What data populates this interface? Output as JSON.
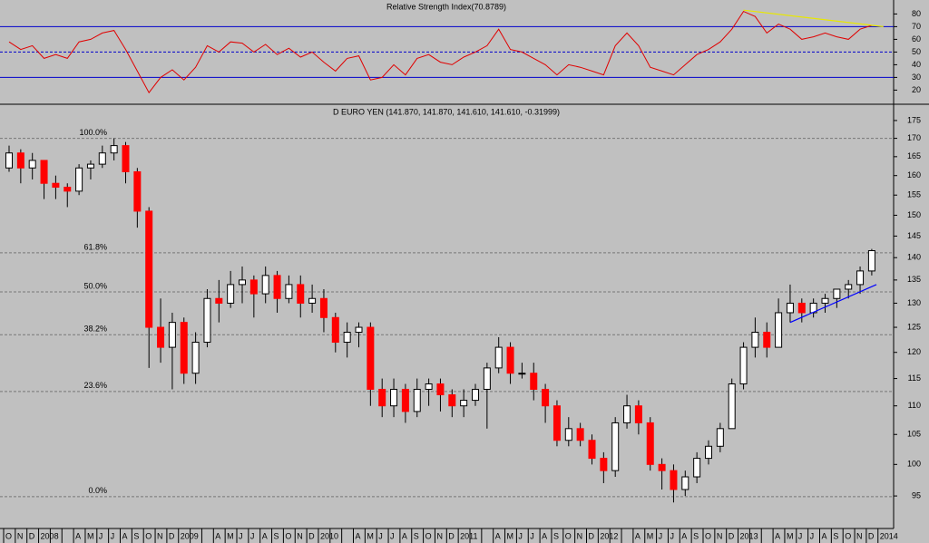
{
  "chart_data": [
    {
      "type": "line",
      "title": "Relative Strength Index(70.8789)",
      "log": false,
      "ylim": [
        11,
        91
      ],
      "yticks": [
        20,
        30,
        40,
        50,
        60,
        70,
        80
      ],
      "color": "#e00000",
      "levels": [
        {
          "value": 70,
          "style": "solid"
        },
        {
          "value": 50,
          "style": "dashed"
        },
        {
          "value": 30,
          "style": "solid"
        }
      ],
      "level_color": "#0000cc",
      "trendlines": [
        {
          "color": "#e8e800",
          "x": [
            63,
            75
          ],
          "y": [
            83,
            70
          ]
        }
      ],
      "values": [
        58,
        52,
        55,
        45,
        48,
        45,
        58,
        60,
        65,
        67,
        52,
        35,
        18,
        30,
        36,
        28,
        38,
        55,
        50,
        58,
        57,
        50,
        56,
        48,
        53,
        46,
        50,
        42,
        35,
        45,
        47,
        28,
        30,
        40,
        32,
        45,
        48,
        42,
        40,
        46,
        50,
        55,
        68,
        52,
        50,
        45,
        40,
        32,
        40,
        38,
        35,
        32,
        55,
        65,
        55,
        38,
        35,
        32,
        40,
        48,
        52,
        58,
        68,
        82,
        78,
        65,
        72,
        68,
        60,
        62,
        65,
        62,
        60,
        68,
        71,
        null
      ]
    },
    {
      "type": "candlestick",
      "title": "D EURO YEN (141.870, 141.870, 141.610, 141.610, -0.31999)",
      "log": true,
      "ylim": [
        90.1,
        178.9
      ],
      "yticks": [
        95,
        100,
        105,
        110,
        115,
        120,
        125,
        130,
        135,
        140,
        145,
        150,
        155,
        160,
        165,
        170,
        175
      ],
      "up_color": "#ffffff",
      "down_color": "#ff0000",
      "edge_color": "#000000",
      "levels": [
        {
          "value": 170,
          "label": "100.0%"
        },
        {
          "value": 141.1,
          "label": "61.8%"
        },
        {
          "value": 132.4,
          "label": "50.0%"
        },
        {
          "value": 123.5,
          "label": "38.2%"
        },
        {
          "value": 112.6,
          "label": "23.6%"
        },
        {
          "value": 94.9,
          "label": "0.0%"
        }
      ],
      "trendlines": [
        {
          "color": "#0000ff",
          "x": [
            67,
            74.4
          ],
          "y": [
            126,
            134
          ]
        }
      ],
      "categories": [
        "O",
        "N",
        "D",
        "2008",
        null,
        null,
        "A",
        "M",
        "J",
        "J",
        "A",
        "S",
        "O",
        "N",
        "D",
        "2009",
        null,
        null,
        "A",
        "M",
        "J",
        "J",
        "A",
        "S",
        "O",
        "N",
        "D",
        "2010",
        null,
        null,
        "A",
        "M",
        "J",
        "J",
        "A",
        "S",
        "O",
        "N",
        "D",
        "2011",
        null,
        null,
        "A",
        "M",
        "J",
        "J",
        "A",
        "S",
        "O",
        "N",
        "D",
        "2012",
        null,
        null,
        "A",
        "M",
        "J",
        "J",
        "A",
        "S",
        "O",
        "N",
        "D",
        "2013",
        null,
        null,
        "A",
        "M",
        "J",
        "J",
        "A",
        "S",
        "O",
        "N",
        "D",
        "2014"
      ],
      "open": [
        162,
        166,
        162,
        164,
        158,
        157,
        156,
        162,
        163,
        166,
        168,
        161,
        151,
        125,
        121,
        126,
        116,
        122,
        131,
        130,
        134,
        135,
        132,
        136,
        131,
        134,
        130,
        131,
        127,
        122,
        124,
        125,
        113,
        110,
        113,
        109,
        113,
        114,
        112,
        110,
        111,
        113,
        117,
        121,
        116,
        116,
        113,
        110,
        104,
        106,
        104,
        101,
        99,
        107,
        110,
        107,
        100,
        99,
        96,
        98,
        101,
        103,
        106,
        114,
        121,
        124,
        121,
        128,
        130,
        128,
        130,
        131,
        133,
        134,
        137,
        null
      ],
      "high": [
        168,
        167,
        166,
        164,
        160,
        158,
        163,
        164,
        168,
        170,
        169,
        162,
        152,
        131,
        128,
        127,
        124,
        133,
        135,
        137,
        138,
        136,
        138,
        137,
        136,
        136,
        134,
        133,
        128,
        126,
        126,
        126,
        115,
        115,
        114,
        115,
        115,
        115,
        113,
        113,
        114,
        118,
        123,
        122,
        118,
        118,
        114,
        111,
        108,
        107,
        105,
        102,
        108,
        112,
        111,
        108,
        101,
        100,
        99,
        102,
        104,
        107,
        115,
        122,
        127,
        126,
        131,
        134,
        131,
        131,
        132,
        133,
        135,
        138,
        142,
        null
      ],
      "low": [
        161,
        158,
        159,
        154,
        154,
        152,
        155,
        159,
        162,
        164,
        158,
        147,
        117,
        118,
        113,
        114,
        114,
        121,
        126,
        129,
        130,
        127,
        130,
        128,
        130,
        127,
        128,
        124,
        120,
        119,
        121,
        110,
        108,
        108,
        107,
        108,
        110,
        109,
        108,
        108,
        110,
        106,
        116,
        114,
        115,
        111,
        107,
        103,
        103,
        103,
        100,
        97,
        98,
        106,
        105,
        99,
        96,
        94,
        95,
        97,
        100,
        102,
        106,
        113,
        119,
        119,
        121,
        126,
        126,
        127,
        128,
        129,
        131,
        132,
        136,
        null
      ],
      "close": [
        166,
        162,
        164,
        158,
        157,
        156,
        162,
        163,
        166,
        168,
        161,
        151,
        125,
        121,
        126,
        116,
        122,
        131,
        130,
        134,
        135,
        132,
        136,
        131,
        134,
        130,
        131,
        127,
        122,
        124,
        125,
        113,
        110,
        113,
        109,
        113,
        114,
        112,
        110,
        111,
        113,
        117,
        121,
        116,
        116,
        113,
        110,
        104,
        106,
        104,
        101,
        99,
        107,
        110,
        107,
        100,
        99,
        96,
        98,
        101,
        103,
        106,
        114,
        121,
        124,
        121,
        128,
        130,
        128,
        130,
        131,
        133,
        134,
        137,
        141.6,
        null
      ]
    }
  ]
}
